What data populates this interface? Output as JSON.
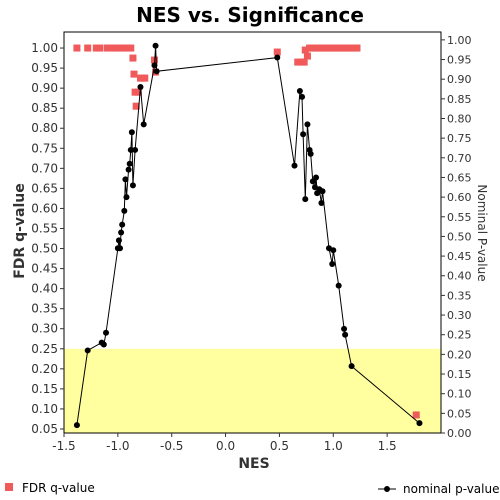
{
  "chart_data": {
    "type": "scatter",
    "title": "NES vs. Significance",
    "xlabel": "NES",
    "ylabel_left": "FDR q-value",
    "ylabel_right": "Nominal P-value",
    "xlim": [
      -1.5,
      2.0
    ],
    "ylim_left": [
      0.04,
      1.04
    ],
    "ylim_right": [
      0.0,
      1.02
    ],
    "x_ticks": [
      "-1.5",
      "-1.0",
      "-0.5",
      "0.0",
      "0.5",
      "1.0",
      "1.5"
    ],
    "y_ticks_left": [
      "0.05",
      "0.10",
      "0.15",
      "0.20",
      "0.25",
      "0.30",
      "0.35",
      "0.40",
      "0.45",
      "0.50",
      "0.55",
      "0.60",
      "0.65",
      "0.70",
      "0.75",
      "0.80",
      "0.85",
      "0.90",
      "0.95",
      "1.00"
    ],
    "y_ticks_right": [
      "0.00",
      "0.05",
      "0.10",
      "0.15",
      "0.20",
      "0.25",
      "0.30",
      "0.35",
      "0.40",
      "0.45",
      "0.50",
      "0.55",
      "0.60",
      "0.65",
      "0.70",
      "0.75",
      "0.80",
      "0.85",
      "0.90",
      "0.95",
      "1.00"
    ],
    "highlight_band": {
      "axis": "left",
      "from": 0.04,
      "to": 0.25,
      "color": "#ffffa0"
    },
    "grid": false,
    "legend_placement": "bottom",
    "series": [
      {
        "name": "FDR q-value",
        "axis": "left",
        "marker": "square",
        "color": "#f05a5a",
        "points": [
          [
            -1.38,
            1.0
          ],
          [
            -1.28,
            1.0
          ],
          [
            -1.2,
            1.0
          ],
          [
            -1.17,
            1.0
          ],
          [
            -1.1,
            1.0
          ],
          [
            -1.07,
            1.0
          ],
          [
            -1.03,
            1.0
          ],
          [
            -1.0,
            1.0
          ],
          [
            -0.97,
            1.0
          ],
          [
            -0.94,
            1.0
          ],
          [
            -0.91,
            1.0
          ],
          [
            -0.88,
            1.0
          ],
          [
            -0.86,
            0.975
          ],
          [
            -0.85,
            0.935
          ],
          [
            -0.84,
            0.89
          ],
          [
            -0.83,
            0.855
          ],
          [
            -0.81,
            0.89
          ],
          [
            -0.79,
            0.925
          ],
          [
            -0.77,
            0.925
          ],
          [
            -0.75,
            0.925
          ],
          [
            -0.66,
            0.97
          ],
          [
            -0.65,
            0.94
          ],
          [
            0.48,
            0.99
          ],
          [
            0.67,
            0.965
          ],
          [
            0.71,
            0.965
          ],
          [
            0.73,
            0.965
          ],
          [
            0.74,
            0.995
          ],
          [
            0.76,
            0.98
          ],
          [
            0.78,
            1.0
          ],
          [
            0.8,
            1.0
          ],
          [
            0.82,
            1.0
          ],
          [
            0.84,
            1.0
          ],
          [
            0.86,
            1.0
          ],
          [
            0.88,
            1.0
          ],
          [
            0.9,
            1.0
          ],
          [
            0.92,
            1.0
          ],
          [
            0.94,
            1.0
          ],
          [
            0.96,
            1.0
          ],
          [
            0.98,
            1.0
          ],
          [
            1.0,
            1.0
          ],
          [
            1.02,
            1.0
          ],
          [
            1.04,
            1.0
          ],
          [
            1.06,
            1.0
          ],
          [
            1.08,
            1.0
          ],
          [
            1.1,
            1.0
          ],
          [
            1.12,
            1.0
          ],
          [
            1.14,
            1.0
          ],
          [
            1.16,
            1.0
          ],
          [
            1.18,
            1.0
          ],
          [
            1.2,
            1.0
          ],
          [
            1.22,
            1.0
          ],
          [
            1.77,
            0.085
          ]
        ]
      },
      {
        "name": "nominal p-value",
        "axis": "right",
        "marker": "circle-line",
        "color": "#000000",
        "points": [
          [
            -1.38,
            0.02
          ],
          [
            -1.28,
            0.21
          ],
          [
            -1.15,
            0.23
          ],
          [
            -1.13,
            0.225
          ],
          [
            -1.11,
            0.255
          ],
          [
            -1.0,
            0.47
          ],
          [
            -0.99,
            0.49
          ],
          [
            -0.98,
            0.47
          ],
          [
            -0.97,
            0.51
          ],
          [
            -0.96,
            0.53
          ],
          [
            -0.94,
            0.565
          ],
          [
            -0.93,
            0.645
          ],
          [
            -0.92,
            0.6
          ],
          [
            -0.9,
            0.67
          ],
          [
            -0.89,
            0.685
          ],
          [
            -0.88,
            0.72
          ],
          [
            -0.87,
            0.765
          ],
          [
            -0.86,
            0.63
          ],
          [
            -0.84,
            0.72
          ],
          [
            -0.79,
            0.88
          ],
          [
            -0.76,
            0.785
          ],
          [
            -0.66,
            0.935
          ],
          [
            -0.65,
            0.985
          ],
          [
            -0.64,
            0.92
          ],
          [
            0.48,
            0.955
          ],
          [
            0.64,
            0.68
          ],
          [
            0.69,
            0.87
          ],
          [
            0.71,
            0.855
          ],
          [
            0.72,
            0.76
          ],
          [
            0.74,
            0.595
          ],
          [
            0.76,
            0.785
          ],
          [
            0.78,
            0.72
          ],
          [
            0.79,
            0.71
          ],
          [
            0.81,
            0.64
          ],
          [
            0.83,
            0.625
          ],
          [
            0.84,
            0.65
          ],
          [
            0.85,
            0.61
          ],
          [
            0.87,
            0.62
          ],
          [
            0.89,
            0.585
          ],
          [
            0.9,
            0.615
          ],
          [
            0.96,
            0.47
          ],
          [
            0.99,
            0.43
          ],
          [
            1.0,
            0.465
          ],
          [
            1.05,
            0.375
          ],
          [
            1.1,
            0.265
          ],
          [
            1.11,
            0.25
          ],
          [
            1.17,
            0.17
          ],
          [
            1.8,
            0.025
          ]
        ]
      }
    ]
  }
}
